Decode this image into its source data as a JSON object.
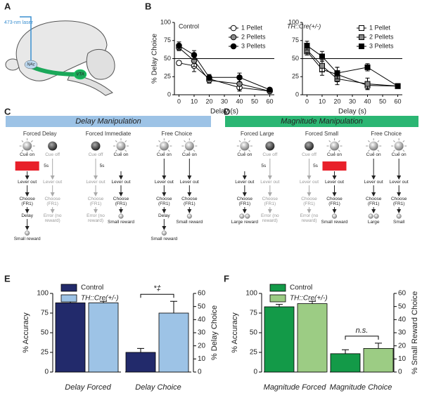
{
  "panels": [
    "A",
    "B",
    "C",
    "D",
    "E",
    "F"
  ],
  "brain": {
    "laser": "473-nm laser",
    "nac": "NAc",
    "vta": "VTA"
  },
  "chart_data": [
    {
      "type": "line",
      "title": "Control",
      "xlabel": "Delay (s)",
      "ylabel": "% Delay Choice",
      "x": [
        0,
        10,
        20,
        40,
        60
      ],
      "xlim": [
        -3,
        63
      ],
      "xticks": [
        0,
        10,
        20,
        30,
        40,
        50,
        60
      ],
      "ylim": [
        0,
        100
      ],
      "yticks": [
        0,
        25,
        50,
        75,
        100
      ],
      "hline": 50,
      "marker": "circle",
      "series": [
        {
          "name": "1 Pellet",
          "color": "#ffffff",
          "values": [
            44,
            40,
            22,
            10,
            5
          ],
          "errors": [
            3,
            8,
            4,
            5,
            2
          ]
        },
        {
          "name": "2 Pellets",
          "color": "#888888",
          "values": [
            65,
            47,
            20,
            15,
            5
          ],
          "errors": [
            4,
            8,
            4,
            8,
            2
          ]
        },
        {
          "name": "3 Pellets",
          "color": "#000000",
          "values": [
            68,
            55,
            24,
            24,
            7
          ],
          "errors": [
            5,
            6,
            4,
            6,
            2
          ]
        }
      ]
    },
    {
      "type": "line",
      "title": "TH::Cre(+/-)",
      "xlabel": "Delay (s)",
      "x": [
        0,
        10,
        20,
        40,
        60
      ],
      "xlim": [
        -3,
        63
      ],
      "xticks": [
        0,
        10,
        20,
        30,
        40,
        50,
        60
      ],
      "ylim": [
        0,
        100
      ],
      "yticks": [
        0,
        25,
        50,
        75,
        100
      ],
      "hline": 50,
      "marker": "square",
      "series": [
        {
          "name": "1 Pellet",
          "color": "#ffffff",
          "values": [
            60,
            35,
            28,
            13,
            12
          ],
          "errors": [
            5,
            8,
            10,
            5,
            2
          ]
        },
        {
          "name": "2 Pellets",
          "color": "#888888",
          "values": [
            62,
            40,
            22,
            15,
            12
          ],
          "errors": [
            5,
            8,
            8,
            8,
            2
          ]
        },
        {
          "name": "3 Pellets",
          "color": "#000000",
          "values": [
            68,
            53,
            30,
            38,
            12
          ],
          "errors": [
            6,
            7,
            8,
            5,
            2
          ]
        }
      ]
    },
    {
      "type": "bar",
      "ylabel": "% Accuracy",
      "y2label": "% Delay Choice",
      "categories": [
        "Delay Forced",
        "Delay Choice"
      ],
      "category_axes": [
        "y",
        "y2"
      ],
      "ylim": [
        0,
        100
      ],
      "yticks": [
        0,
        25,
        50,
        75,
        100
      ],
      "y2lim": [
        0,
        60
      ],
      "y2ticks": [
        0,
        10,
        20,
        30,
        40,
        50,
        60
      ],
      "annotation": "*‡",
      "series": [
        {
          "name": "Control",
          "color": "#222a6b",
          "values": [
            88,
            15
          ],
          "errors": [
            2,
            3
          ]
        },
        {
          "name": "TH::Cre(+/-)",
          "color": "#9dc3e6",
          "values": [
            88,
            45
          ],
          "errors": [
            2,
            9
          ]
        }
      ]
    },
    {
      "type": "bar",
      "ylabel": "% Accuracy",
      "y2label": "% Small Reward Choice",
      "categories": [
        "Magnitude Forced",
        "Magnitude Choice"
      ],
      "category_axes": [
        "y",
        "y2"
      ],
      "ylim": [
        0,
        100
      ],
      "yticks": [
        0,
        25,
        50,
        75,
        100
      ],
      "y2lim": [
        0,
        60
      ],
      "y2ticks": [
        0,
        10,
        20,
        30,
        40,
        50,
        60
      ],
      "annotation": "n.s.",
      "series": [
        {
          "name": "Control",
          "color": "#139a48",
          "values": [
            83,
            14
          ],
          "errors": [
            3,
            3
          ]
        },
        {
          "name": "TH::Cre(+/-)",
          "color": "#9ccc84",
          "values": [
            87,
            18
          ],
          "errors": [
            3,
            4
          ]
        }
      ]
    }
  ],
  "diagrams": [
    {
      "title": "Delay Manipulation",
      "color": "#9dc3e6",
      "groups": [
        {
          "label": "Forced Delay",
          "columns": [
            {
              "active": true,
              "cue": "Cue on",
              "delay": "5s",
              "delay_box": true,
              "delay_side": "right",
              "steps": [
                "Lever out",
                "Choose (FR1)",
                "Delay"
              ],
              "balls": 1,
              "reward": "Small reward"
            },
            {
              "active": false,
              "cue": "Cue off",
              "steps": [
                "Lever out",
                "Choose (FR1)",
                "Error (no reward)"
              ]
            }
          ]
        },
        {
          "label": "Forced Immediate",
          "columns": [
            {
              "active": false,
              "cue": "Cue off",
              "steps": [
                "Lever out",
                "Choose (FR1)",
                "Error (no reward)"
              ]
            },
            {
              "active": true,
              "cue": "Cue on",
              "delay": "5s",
              "delay_box": false,
              "delay_side": "left",
              "steps": [
                "Lever out",
                "Choose (FR1)"
              ],
              "balls": 1,
              "reward": "Small reward"
            }
          ]
        },
        {
          "label": "Free Choice",
          "columns": [
            {
              "active": true,
              "cue": "Cue on",
              "steps": [
                "Lever out",
                "Choose (FR1)",
                "Delay"
              ],
              "balls": 1,
              "reward": "Small reward"
            },
            {
              "active": true,
              "cue": "Cue on",
              "steps": [
                "Lever out",
                "Choose (FR1)"
              ],
              "balls": 1,
              "reward": "Small reward"
            }
          ]
        }
      ]
    },
    {
      "title": "Magnitude Manipulation",
      "color": "#2bb673",
      "groups": [
        {
          "label": "Forced Large",
          "columns": [
            {
              "active": true,
              "cue": "Cue on",
              "delay": "5s",
              "delay_box": false,
              "delay_side": "right",
              "steps": [
                "Lever out",
                "Choose (FR1)"
              ],
              "balls": 2,
              "reward": "Large reward"
            },
            {
              "active": false,
              "cue": "Cue off",
              "steps": [
                "Lever out",
                "Choose (FR1)",
                "Error (no reward)"
              ]
            }
          ]
        },
        {
          "label": "Forced Small",
          "columns": [
            {
              "active": false,
              "cue": "Cue off",
              "steps": [
                "Lever out",
                "Choose (FR1)",
                "Error (no reward)"
              ]
            },
            {
              "active": true,
              "cue": "Cue on",
              "delay": "5s",
              "delay_box": true,
              "delay_side": "left",
              "steps": [
                "Lever out",
                "Choose (FR1)"
              ],
              "balls": 1,
              "reward": "Small reward"
            }
          ]
        },
        {
          "label": "Free Choice",
          "columns": [
            {
              "active": true,
              "cue": "Cue on",
              "steps": [
                "Lever out",
                "Choose (FR1)"
              ],
              "balls": 2,
              "reward": "Large"
            },
            {
              "active": true,
              "cue": "Cue on",
              "steps": [
                "Lever out",
                "Choose (FR1)"
              ],
              "balls": 1,
              "reward": "Small"
            }
          ]
        }
      ]
    }
  ]
}
